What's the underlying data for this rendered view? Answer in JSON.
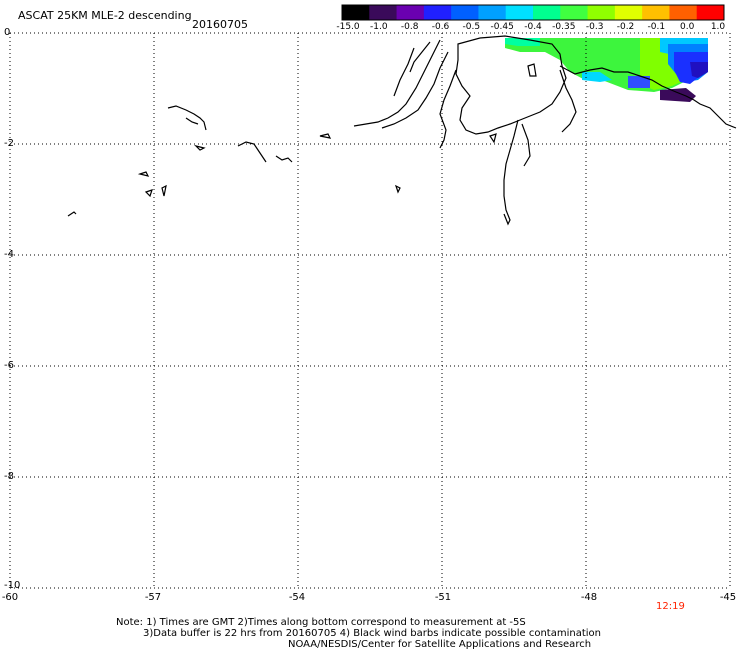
{
  "header": {
    "title": "ASCAT 25KM MLE-2 descending",
    "date": "20160705"
  },
  "colorbar": {
    "labels": [
      "-15.0",
      "-1.0",
      "-0.8",
      "-0.6",
      "-0.5",
      "-0.45",
      "-0.4",
      "-0.35",
      "-0.3",
      "-0.2",
      "-0.1",
      "0.0",
      "1.0"
    ],
    "colors": [
      "#000000",
      "#3a0a5a",
      "#6a00b0",
      "#2020ff",
      "#0060ff",
      "#00a0ff",
      "#00e0ff",
      "#00ff90",
      "#40ff40",
      "#90ff00",
      "#e0ff00",
      "#ffc000",
      "#ff6000",
      "#ff0000"
    ]
  },
  "map": {
    "lon_range": [
      -60,
      -45
    ],
    "lat_range": [
      -10,
      0
    ],
    "x_ticks": [
      "-60",
      "-57",
      "-54",
      "-51",
      "-48",
      "-45"
    ],
    "y_ticks": [
      "0",
      "-2",
      "-4",
      "-6",
      "-8",
      "-10"
    ],
    "grid": "dotted"
  },
  "footer": {
    "time": "12:19",
    "note_line1": "Note: 1) Times are GMT 2)Times along bottom correspond to measurement at -5S",
    "note_line2": "3)Data buffer is 22 hrs from 20160705 4) Black wind barbs indicate possible contamination",
    "credit": "NOAA/NESDIS/Center for Satellite Applications and Research"
  }
}
